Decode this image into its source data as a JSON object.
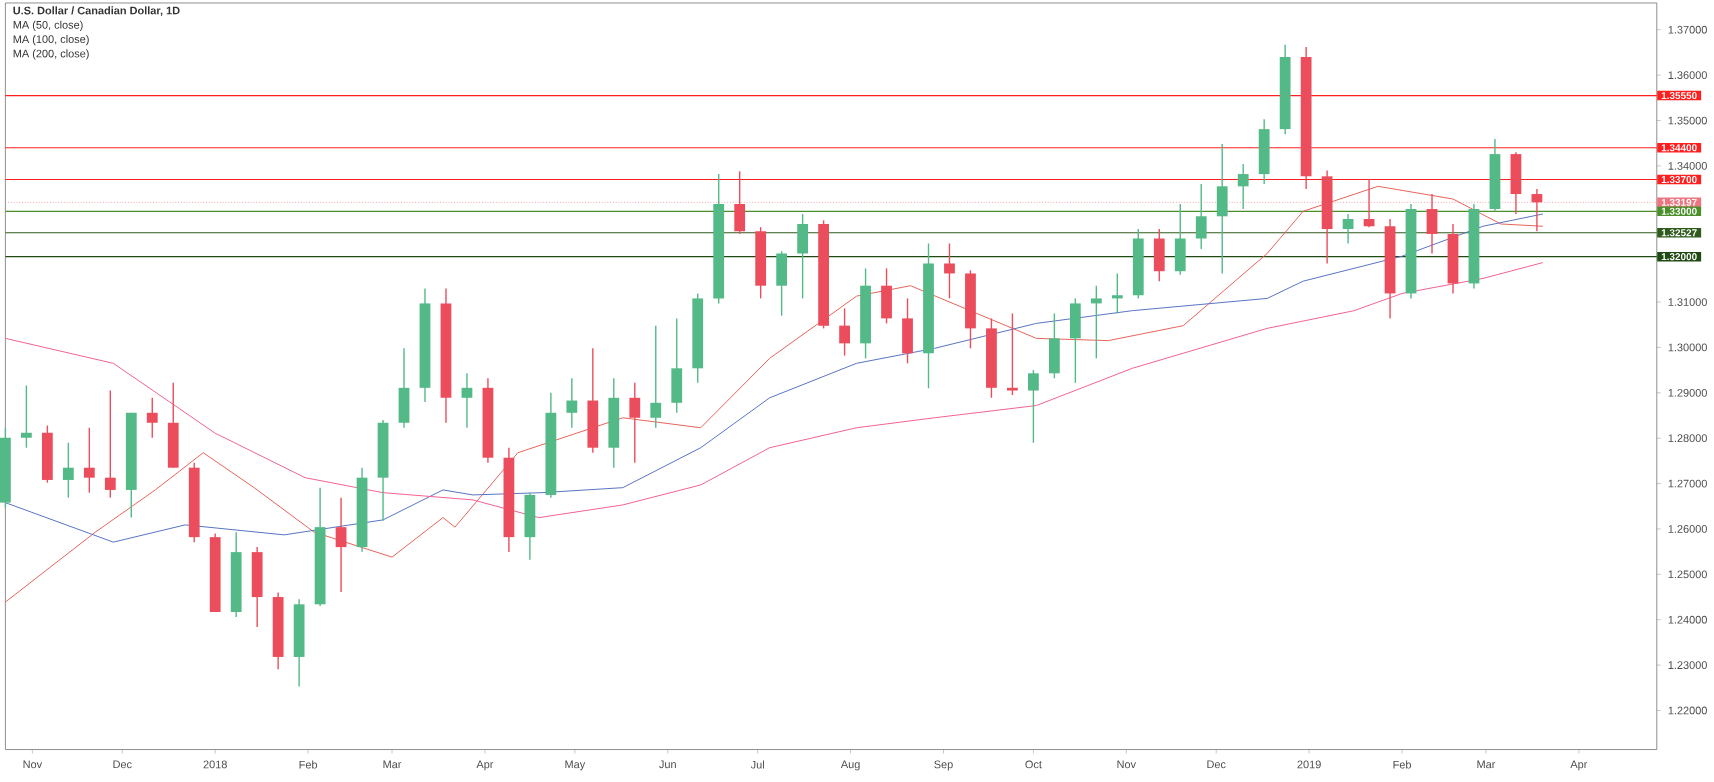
{
  "chart_data": {
    "type": "candlestick",
    "title": "U.S. Dollar / Canadian Dollar, 1D",
    "annotations": [
      "MA (50, close)",
      "MA (100, close)",
      "MA (200, close)"
    ],
    "x": [
      "2017-10-23",
      "2017-10-30",
      "2017-11-06",
      "2017-11-13",
      "2017-11-20",
      "2017-11-27",
      "2017-12-04",
      "2017-12-11",
      "2017-12-18",
      "2017-12-25",
      "2018-01-01",
      "2018-01-08",
      "2018-01-15",
      "2018-01-22",
      "2018-01-29",
      "2018-02-05",
      "2018-02-12",
      "2018-02-19",
      "2018-02-26",
      "2018-03-05",
      "2018-03-12",
      "2018-03-19",
      "2018-03-26",
      "2018-04-02",
      "2018-04-09",
      "2018-04-16",
      "2018-04-23",
      "2018-04-30",
      "2018-05-07",
      "2018-05-14",
      "2018-05-21",
      "2018-05-28",
      "2018-06-04",
      "2018-06-11",
      "2018-06-18",
      "2018-06-25",
      "2018-07-02",
      "2018-07-09",
      "2018-07-16",
      "2018-07-23",
      "2018-07-30",
      "2018-08-06",
      "2018-08-13",
      "2018-08-20",
      "2018-08-27",
      "2018-09-03",
      "2018-09-10",
      "2018-09-17",
      "2018-09-24",
      "2018-10-01",
      "2018-10-08",
      "2018-10-15",
      "2018-10-22",
      "2018-10-29",
      "2018-11-05",
      "2018-11-12",
      "2018-11-19",
      "2018-11-26",
      "2018-12-03",
      "2018-12-10",
      "2018-12-17",
      "2018-12-24",
      "2018-12-31",
      "2019-01-07",
      "2019-01-14",
      "2019-01-21",
      "2019-01-28",
      "2019-02-04",
      "2019-02-11",
      "2019-02-18",
      "2019-02-25",
      "2019-03-04",
      "2019-03-11",
      "2019-03-18"
    ],
    "ohlc": [
      [
        1.2658,
        1.2823,
        1.2647,
        1.2801
      ],
      [
        1.2801,
        1.2916,
        1.2779,
        1.2812
      ],
      [
        1.2812,
        1.2828,
        1.2702,
        1.2708
      ],
      [
        1.2708,
        1.279,
        1.2669,
        1.2735
      ],
      [
        1.2735,
        1.2823,
        1.268,
        1.2713
      ],
      [
        1.2713,
        1.2905,
        1.2669,
        1.2686
      ],
      [
        1.2686,
        1.2856,
        1.2625,
        1.2856
      ],
      [
        1.2856,
        1.2889,
        1.2801,
        1.2834
      ],
      [
        1.2834,
        1.2922,
        1.2735,
        1.2735
      ],
      [
        1.2735,
        1.2746,
        1.2571,
        1.2582
      ],
      [
        1.2582,
        1.259,
        1.2417,
        1.2417
      ],
      [
        1.2417,
        1.2593,
        1.2406,
        1.2549
      ],
      [
        1.2549,
        1.256,
        1.2384,
        1.245
      ],
      [
        1.245,
        1.246,
        1.2291,
        1.2318
      ],
      [
        1.2318,
        1.2445,
        1.2253,
        1.2434
      ],
      [
        1.2434,
        1.2691,
        1.243,
        1.2604
      ],
      [
        1.2604,
        1.2669,
        1.2461,
        1.256
      ],
      [
        1.256,
        1.2735,
        1.255,
        1.2713
      ],
      [
        1.2713,
        1.284,
        1.2618,
        1.2834
      ],
      [
        1.2834,
        1.2998,
        1.2823,
        1.2911
      ],
      [
        1.2911,
        1.313,
        1.288,
        1.3097
      ],
      [
        1.3097,
        1.313,
        1.2834,
        1.2889
      ],
      [
        1.2889,
        1.2943,
        1.2823,
        1.2911
      ],
      [
        1.2911,
        1.2932,
        1.2746,
        1.2757
      ],
      [
        1.2757,
        1.2779,
        1.2549,
        1.2582
      ],
      [
        1.2582,
        1.268,
        1.2532,
        1.2675
      ],
      [
        1.2675,
        1.29,
        1.2669,
        1.2856
      ],
      [
        1.2856,
        1.2932,
        1.2823,
        1.2883
      ],
      [
        1.2883,
        1.2998,
        1.2768,
        1.2779
      ],
      [
        1.2779,
        1.2932,
        1.2735,
        1.2889
      ],
      [
        1.2889,
        1.2922,
        1.2746,
        1.2845
      ],
      [
        1.2845,
        1.3048,
        1.2823,
        1.2878
      ],
      [
        1.2878,
        1.3064,
        1.2856,
        1.2954
      ],
      [
        1.2954,
        1.3119,
        1.2922,
        1.3108
      ],
      [
        1.3108,
        1.3382,
        1.3097,
        1.3316
      ],
      [
        1.3316,
        1.3388,
        1.325,
        1.3256
      ],
      [
        1.3256,
        1.3265,
        1.3108,
        1.3136
      ],
      [
        1.3136,
        1.3212,
        1.307,
        1.3207
      ],
      [
        1.3207,
        1.3294,
        1.3108,
        1.3272
      ],
      [
        1.3272,
        1.328,
        1.3042,
        1.3048
      ],
      [
        1.3048,
        1.3086,
        1.2982,
        1.3009
      ],
      [
        1.3009,
        1.3174,
        1.2976,
        1.3136
      ],
      [
        1.3136,
        1.3174,
        1.3053,
        1.3064
      ],
      [
        1.3064,
        1.3108,
        1.2965,
        1.2987
      ],
      [
        1.2987,
        1.3229,
        1.291,
        1.3185
      ],
      [
        1.3185,
        1.3229,
        1.3108,
        1.3163
      ],
      [
        1.3163,
        1.317,
        1.2998,
        1.3042
      ],
      [
        1.3042,
        1.3064,
        1.2889,
        1.2911
      ],
      [
        1.2911,
        1.3075,
        1.2895,
        1.2905
      ],
      [
        1.2905,
        1.295,
        1.279,
        1.2943
      ],
      [
        1.2943,
        1.3075,
        1.2932,
        1.302
      ],
      [
        1.302,
        1.3108,
        1.2922,
        1.3097
      ],
      [
        1.3097,
        1.3136,
        1.2976,
        1.3108
      ],
      [
        1.3108,
        1.3163,
        1.3075,
        1.3115
      ],
      [
        1.3115,
        1.3261,
        1.3108,
        1.324
      ],
      [
        1.324,
        1.3261,
        1.3146,
        1.3168
      ],
      [
        1.3168,
        1.3316,
        1.316,
        1.324
      ],
      [
        1.324,
        1.336,
        1.3217,
        1.3289
      ],
      [
        1.3289,
        1.3448,
        1.3163,
        1.3355
      ],
      [
        1.3355,
        1.3404,
        1.3305,
        1.3382
      ],
      [
        1.3382,
        1.3503,
        1.336,
        1.3481
      ],
      [
        1.3481,
        1.3667,
        1.347,
        1.364
      ],
      [
        1.364,
        1.3662,
        1.3349,
        1.3377
      ],
      [
        1.3377,
        1.339,
        1.3185,
        1.3261
      ],
      [
        1.3261,
        1.3294,
        1.3229,
        1.3283
      ],
      [
        1.3283,
        1.3371,
        1.3265,
        1.3267
      ],
      [
        1.3267,
        1.3283,
        1.3064,
        1.3119
      ],
      [
        1.3119,
        1.3316,
        1.3108,
        1.3305
      ],
      [
        1.3305,
        1.3338,
        1.3207,
        1.325
      ],
      [
        1.325,
        1.3272,
        1.3119,
        1.3141
      ],
      [
        1.3141,
        1.3316,
        1.313,
        1.3305
      ],
      [
        1.3305,
        1.3459,
        1.33,
        1.3426
      ],
      [
        1.3426,
        1.343,
        1.3294,
        1.3338
      ],
      [
        1.3338,
        1.3349,
        1.3256,
        1.33197
      ]
    ],
    "colors": [
      "#53b987",
      "#53b987",
      "#eb4d5c",
      "#53b987",
      "#eb4d5c",
      "#eb4d5c",
      "#53b987",
      "#eb4d5c",
      "#eb4d5c",
      "#eb4d5c",
      "#eb4d5c",
      "#53b987",
      "#eb4d5c",
      "#eb4d5c",
      "#53b987",
      "#53b987",
      "#eb4d5c",
      "#53b987",
      "#53b987",
      "#53b987",
      "#53b987",
      "#eb4d5c",
      "#53b987",
      "#eb4d5c",
      "#eb4d5c",
      "#53b987",
      "#53b987",
      "#53b987",
      "#eb4d5c",
      "#53b987",
      "#eb4d5c",
      "#53b987",
      "#53b987",
      "#53b987",
      "#53b987",
      "#eb4d5c",
      "#eb4d5c",
      "#53b987",
      "#53b987",
      "#eb4d5c",
      "#eb4d5c",
      "#53b987",
      "#eb4d5c",
      "#eb4d5c",
      "#53b987",
      "#eb4d5c",
      "#eb4d5c",
      "#eb4d5c",
      "#eb4d5c",
      "#53b987",
      "#53b987",
      "#53b987",
      "#53b987",
      "#53b987",
      "#53b987",
      "#eb4d5c",
      "#53b987",
      "#53b987",
      "#53b987",
      "#53b987",
      "#53b987",
      "#53b987",
      "#eb4d5c",
      "#eb4d5c",
      "#53b987",
      "#eb4d5c",
      "#eb4d5c",
      "#53b987",
      "#eb4d5c",
      "#eb4d5c",
      "#53b987",
      "#53b987",
      "#eb4d5c",
      "#eb4d5c"
    ],
    "series": [
      {
        "type": "line",
        "color": "#e8645a",
        "x": [
          "2017-10-23",
          "2017-11-22",
          "2017-12-12",
          "2017-12-28",
          "2018-01-14",
          "2018-02-03",
          "2018-03-01",
          "2018-03-18",
          "2018-03-22",
          "2018-04-12",
          "2018-05-17",
          "2018-06-12",
          "2018-07-05",
          "2018-08-03",
          "2018-08-21",
          "2018-10-02",
          "2018-10-26",
          "2018-11-20",
          "2018-12-18",
          "2018-12-30",
          "2019-01-24",
          "2019-02-18",
          "2019-03-06",
          "2019-03-20"
        ],
        "values": [
          1.2439,
          1.2593,
          1.2686,
          1.2768,
          1.2691,
          1.2593,
          1.2538,
          1.2625,
          1.2604,
          1.2768,
          1.2845,
          1.2823,
          1.2976,
          1.3113,
          1.3136,
          1.302,
          1.3015,
          1.3048,
          1.3207,
          1.33,
          1.3355,
          1.3327,
          1.3272,
          1.3267
        ]
      },
      {
        "type": "line",
        "color": "#5874c4",
        "x": [
          "2017-10-23",
          "2017-11-28",
          "2017-12-22",
          "2018-01-24",
          "2018-02-26",
          "2018-03-18",
          "2018-03-28",
          "2018-04-20",
          "2018-05-17",
          "2018-06-12",
          "2018-07-05",
          "2018-08-03",
          "2018-08-29",
          "2018-10-02",
          "2018-11-03",
          "2018-12-18",
          "2018-12-30",
          "2019-02-01",
          "2019-02-28",
          "2019-03-20"
        ],
        "values": [
          1.2658,
          1.2571,
          1.2609,
          1.2587,
          1.262,
          1.2686,
          1.2675,
          1.268,
          1.2691,
          1.2779,
          1.2889,
          1.2965,
          1.2998,
          1.3053,
          1.3081,
          1.3108,
          1.3146,
          1.3201,
          1.3267,
          1.3294
        ]
      },
      {
        "type": "line",
        "color": "#f06292",
        "x": [
          "2017-10-23",
          "2017-11-28",
          "2018-01-01",
          "2018-01-31",
          "2018-02-26",
          "2018-03-28",
          "2018-04-19",
          "2018-05-17",
          "2018-06-12",
          "2018-07-05",
          "2018-08-03",
          "2018-08-29",
          "2018-10-02",
          "2018-11-03",
          "2018-12-18",
          "2019-01-16",
          "2019-02-01",
          "2019-02-28",
          "2019-03-20"
        ],
        "values": [
          1.302,
          1.2965,
          1.2811,
          1.2713,
          1.268,
          1.2664,
          1.2625,
          1.2653,
          1.2697,
          1.2779,
          1.2823,
          1.2845,
          1.2872,
          1.2954,
          1.3042,
          1.3081,
          1.3119,
          1.3152,
          1.3187
        ]
      }
    ],
    "ref_lines": [
      {
        "axis": "y",
        "value": 1.3555,
        "label": "1.35550",
        "color": "#ff1f1f"
      },
      {
        "axis": "y",
        "value": 1.344,
        "label": "1.34400",
        "color": "#ff1f1f"
      },
      {
        "axis": "y",
        "value": 1.337,
        "label": "1.33700",
        "color": "#ff1f1f"
      },
      {
        "axis": "y",
        "value": 1.33197,
        "label": "1.33197",
        "color": "#f07480",
        "line_style": "dotted"
      },
      {
        "axis": "y",
        "value": 1.33,
        "label": "1.33000",
        "color": "#4a8f2a"
      },
      {
        "axis": "y",
        "value": 1.32527,
        "label": "1.32527",
        "color": "#2f5a1e"
      },
      {
        "axis": "y",
        "value": 1.32,
        "label": "1.32000",
        "color": "#1f4a12"
      }
    ],
    "xlim": [
      "2017-10-23",
      "2019-04-27"
    ],
    "ylim": [
      1.2114,
      1.3759
    ],
    "xticks": [
      {
        "value": "2017-11-01",
        "label": "Nov"
      },
      {
        "value": "2017-12-01",
        "label": "Dec"
      },
      {
        "value": "2018-01-01",
        "label": "2018"
      },
      {
        "value": "2018-02-01",
        "label": "Feb"
      },
      {
        "value": "2018-03-01",
        "label": "Mar"
      },
      {
        "value": "2018-04-01",
        "label": "Apr"
      },
      {
        "value": "2018-05-01",
        "label": "May"
      },
      {
        "value": "2018-06-01",
        "label": "Jun"
      },
      {
        "value": "2018-07-01",
        "label": "Jul"
      },
      {
        "value": "2018-08-01",
        "label": "Aug"
      },
      {
        "value": "2018-09-01",
        "label": "Sep"
      },
      {
        "value": "2018-10-01",
        "label": "Oct"
      },
      {
        "value": "2018-11-01",
        "label": "Nov"
      },
      {
        "value": "2018-12-01",
        "label": "Dec"
      },
      {
        "value": "2019-01-01",
        "label": "2019"
      },
      {
        "value": "2019-02-01",
        "label": "Feb"
      },
      {
        "value": "2019-03-01",
        "label": "Mar"
      },
      {
        "value": "2019-04-01",
        "label": "Apr"
      }
    ],
    "yticks": [
      {
        "value": 1.22,
        "label": "1.22000"
      },
      {
        "value": 1.23,
        "label": "1.23000"
      },
      {
        "value": 1.24,
        "label": "1.24000"
      },
      {
        "value": 1.25,
        "label": "1.25000"
      },
      {
        "value": 1.26,
        "label": "1.26000"
      },
      {
        "value": 1.27,
        "label": "1.27000"
      },
      {
        "value": 1.28,
        "label": "1.28000"
      },
      {
        "value": 1.29,
        "label": "1.29000"
      },
      {
        "value": 1.3,
        "label": "1.30000"
      },
      {
        "value": 1.31,
        "label": "1.31000"
      },
      {
        "value": 1.34,
        "label": "1.34000"
      },
      {
        "value": 1.35,
        "label": "1.35000"
      },
      {
        "value": 1.36,
        "label": "1.36000"
      },
      {
        "value": 1.37,
        "label": "1.37000"
      }
    ]
  }
}
